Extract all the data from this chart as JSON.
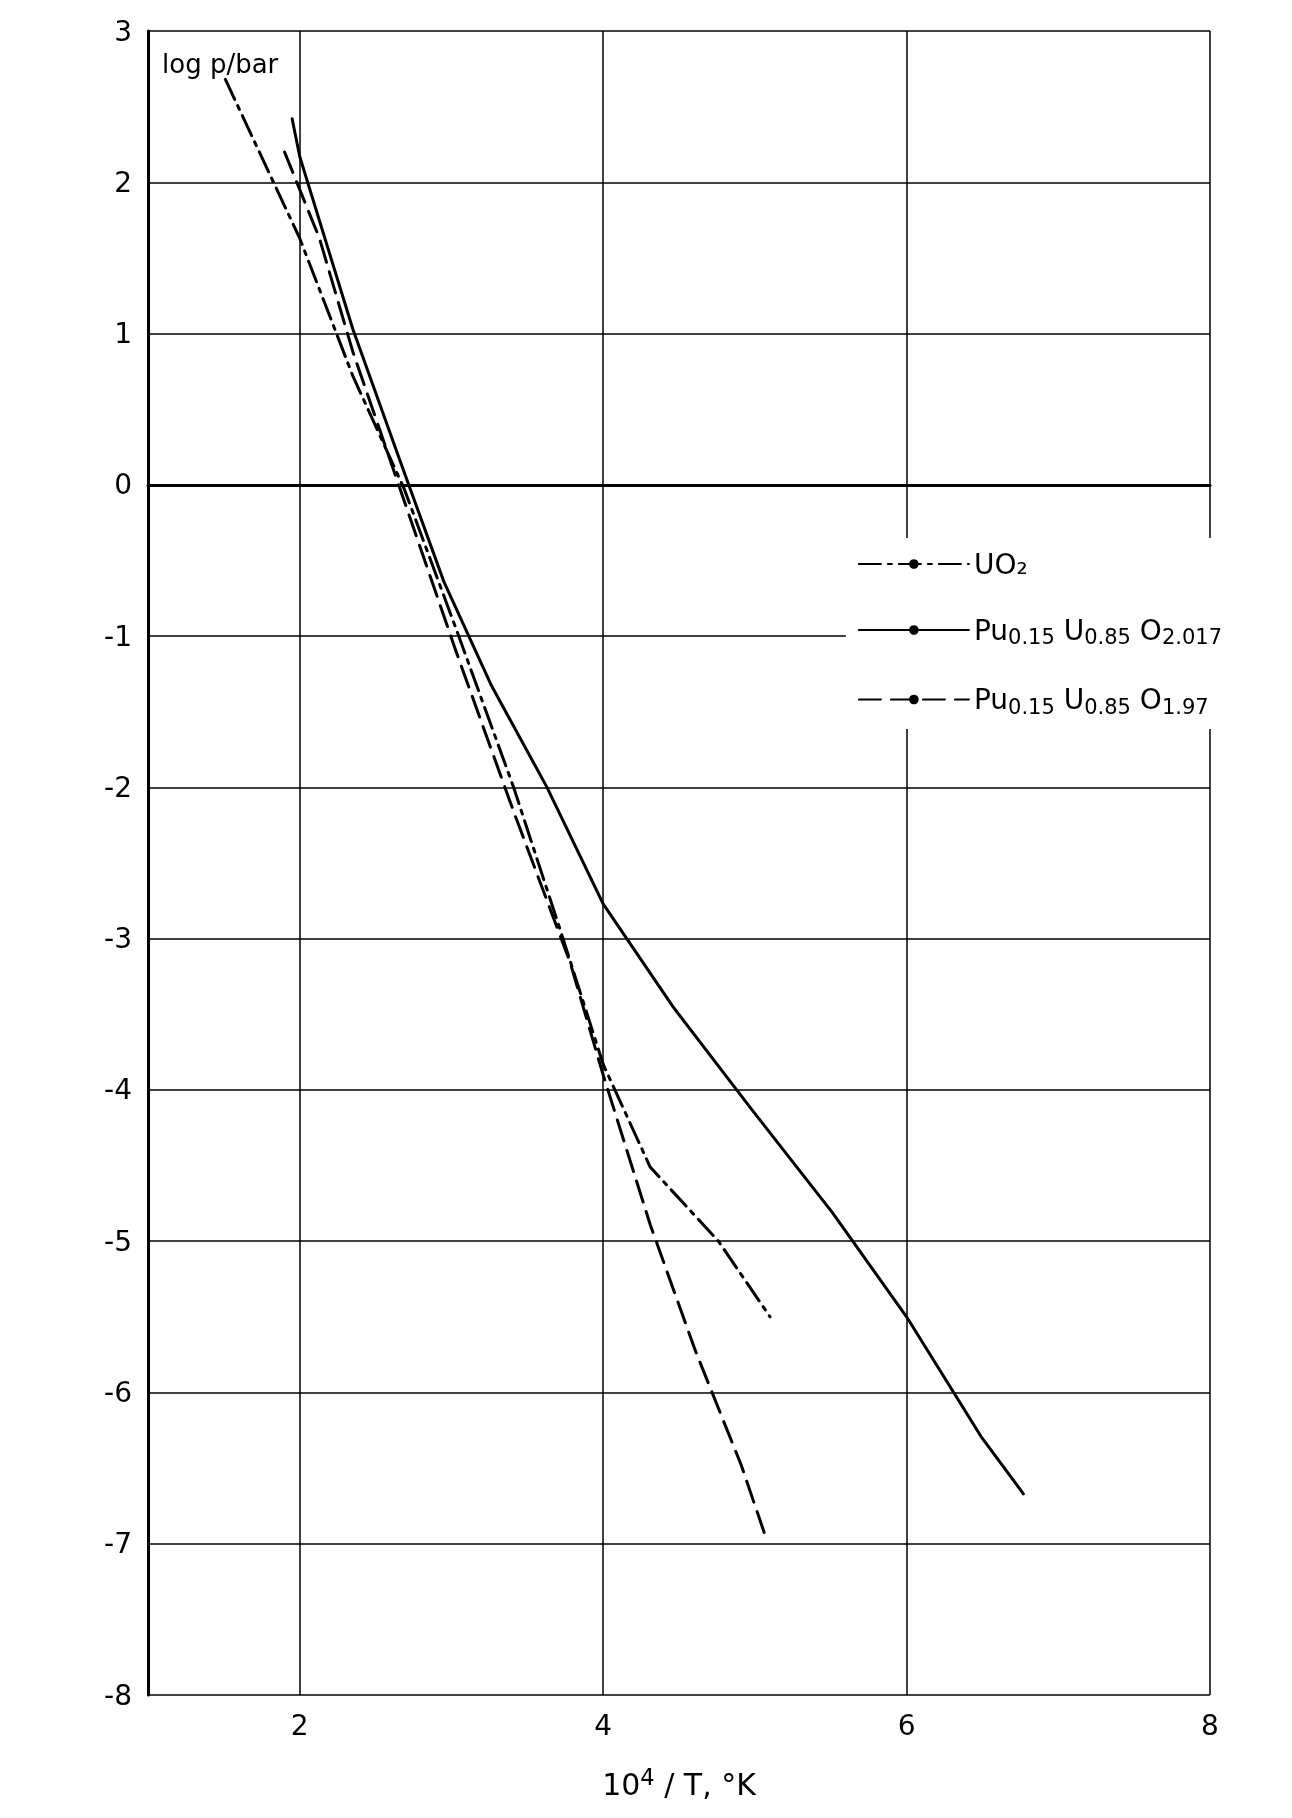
{
  "chart_data": {
    "type": "line",
    "xlabel": "10$^{4}$ / T, °K",
    "ylabel": "log p/bar",
    "xlim": [
      1,
      8
    ],
    "xticks": [
      2,
      4,
      6,
      8
    ],
    "ylim": [
      -8,
      3
    ],
    "yticks": [
      -8,
      -7,
      -6,
      -5,
      -4,
      -3,
      -2,
      -1,
      0,
      1,
      2,
      3
    ],
    "grid": true,
    "legend": "right",
    "marker": "none",
    "series": [
      {
        "name": "UO₂",
        "color": "#000000",
        "line_style": "dashdot",
        "x": [
          1.51,
          2.0,
          2.35,
          2.69,
          3.03,
          3.41,
          3.71,
          4.0,
          4.31,
          4.76,
          5.1
        ],
        "values": [
          2.68,
          1.63,
          0.72,
          -0.03,
          -0.95,
          -2.0,
          -2.92,
          -3.83,
          -4.51,
          -5.0,
          -5.5
        ]
      },
      {
        "name": "Pu$_{0.15}$ U$_{0.85}$ O$_{2.017}$",
        "color": "#000000",
        "line_style": "solid",
        "x": [
          1.95,
          2.0,
          2.35,
          2.65,
          2.95,
          3.26,
          3.63,
          4.0,
          4.46,
          4.98,
          5.51,
          6.0,
          6.49,
          6.77
        ],
        "values": [
          2.42,
          2.17,
          1.03,
          0.19,
          -0.64,
          -1.32,
          -2.0,
          -2.77,
          -3.45,
          -4.13,
          -4.81,
          -5.5,
          -6.29,
          -6.67
        ]
      },
      {
        "name": "Pu$_{0.15}$ U$_{0.85}$ O$_{1.97}$",
        "color": "#000000",
        "line_style": "dashed",
        "x": [
          1.9,
          2.13,
          2.35,
          2.69,
          3.03,
          3.41,
          3.78,
          4.0,
          4.31,
          4.61,
          4.91,
          5.08
        ],
        "values": [
          2.2,
          1.63,
          0.88,
          -0.11,
          -1.1,
          -2.16,
          -3.15,
          -3.9,
          -4.89,
          -5.73,
          -6.48,
          -6.98
        ]
      }
    ]
  }
}
